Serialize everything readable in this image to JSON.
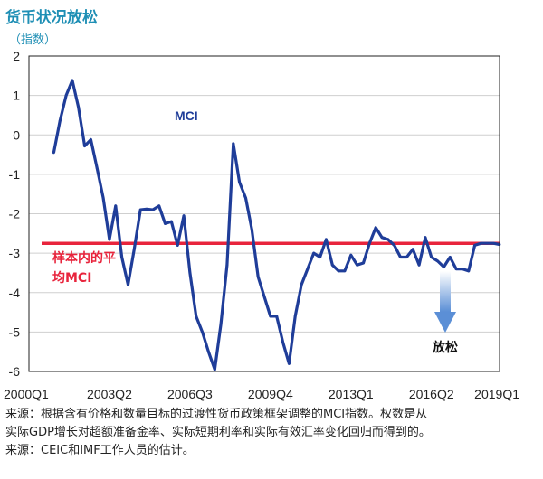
{
  "header": {
    "title": "货币状况放松",
    "unit": "（指数）"
  },
  "chart_data": {
    "type": "line",
    "title": "货币状况放松",
    "ylabel": "（指数）",
    "ylim": [
      -6,
      2
    ],
    "yticks": [
      2,
      1,
      0,
      -1,
      -2,
      -3,
      -4,
      -5,
      -6
    ],
    "xticks": [
      "2000Q1",
      "2003Q2",
      "2006Q3",
      "2009Q4",
      "2013Q1",
      "2016Q2",
      "2019Q1"
    ],
    "xrange_quarters": [
      "2000Q1",
      "2019Q1"
    ],
    "grid": "horizontal",
    "series": [
      {
        "name": "MCI",
        "color": "#1f3d99",
        "x": [
          "2001Q1",
          "2001Q2",
          "2001Q3",
          "2001Q4",
          "2002Q1",
          "2002Q2",
          "2002Q3",
          "2002Q4",
          "2003Q1",
          "2003Q2",
          "2003Q3",
          "2003Q4",
          "2004Q1",
          "2004Q2",
          "2004Q3",
          "2004Q4",
          "2005Q1",
          "2005Q2",
          "2005Q3",
          "2005Q4",
          "2006Q1",
          "2006Q2",
          "2006Q3",
          "2006Q4",
          "2007Q1",
          "2007Q2",
          "2007Q3",
          "2007Q4",
          "2008Q1",
          "2008Q2",
          "2008Q3",
          "2008Q4",
          "2009Q1",
          "2009Q2",
          "2009Q3",
          "2009Q4",
          "2010Q1",
          "2010Q2",
          "2010Q3",
          "2010Q4",
          "2011Q1",
          "2011Q2",
          "2011Q3",
          "2011Q4",
          "2012Q1",
          "2012Q2",
          "2012Q3",
          "2012Q4",
          "2013Q1",
          "2013Q2",
          "2013Q3",
          "2013Q4",
          "2014Q1",
          "2014Q2",
          "2014Q3",
          "2014Q4",
          "2015Q1",
          "2015Q2",
          "2015Q3",
          "2015Q4",
          "2016Q1",
          "2016Q2",
          "2016Q3",
          "2016Q4",
          "2017Q1",
          "2017Q2",
          "2017Q3",
          "2017Q4",
          "2018Q1",
          "2018Q2",
          "2018Q3",
          "2018Q4",
          "2019Q1"
        ],
        "values": [
          -0.45,
          0.35,
          1.0,
          1.38,
          0.7,
          -0.28,
          -0.12,
          -0.85,
          -1.6,
          -2.65,
          -1.8,
          -3.1,
          -3.8,
          -2.9,
          -1.9,
          -1.88,
          -1.9,
          -1.8,
          -2.25,
          -2.2,
          -2.8,
          -2.05,
          -3.5,
          -4.6,
          -5.0,
          -5.5,
          -5.95,
          -4.8,
          -3.3,
          -0.22,
          -1.2,
          -1.6,
          -2.4,
          -3.6,
          -4.1,
          -4.6,
          -4.6,
          -5.25,
          -5.8,
          -4.6,
          -3.8,
          -3.4,
          -3.0,
          -3.1,
          -2.65,
          -3.3,
          -3.45,
          -3.45,
          -3.05,
          -3.3,
          -3.25,
          -2.75,
          -2.35,
          -2.6,
          -2.65,
          -2.8,
          -3.1,
          -3.1,
          -2.9,
          -3.3,
          -2.6,
          -3.1,
          -3.2,
          -3.35,
          -3.1,
          -3.4,
          -3.4,
          -3.45,
          -2.8,
          -2.75,
          -2.75,
          -2.75,
          -2.78
        ]
      },
      {
        "name": "样本内的平均MCI",
        "color": "#e8243c",
        "constant": -2.75
      }
    ],
    "annotations": {
      "series_label": "MCI",
      "mean_label_line1": "样本内的平",
      "mean_label_line2": "均MCI",
      "easing_label": "放松"
    }
  },
  "notes": {
    "line1": "来源：根据含有价格和数量目标的过渡性货币政策框架调整的MCI指数。权数是从",
    "line2": "实际GDP增长对超额准备金率、实际短期利率和实际有效汇率变化回归而得到的。",
    "line3": "来源：CEIC和IMF工作人员的估计。"
  }
}
